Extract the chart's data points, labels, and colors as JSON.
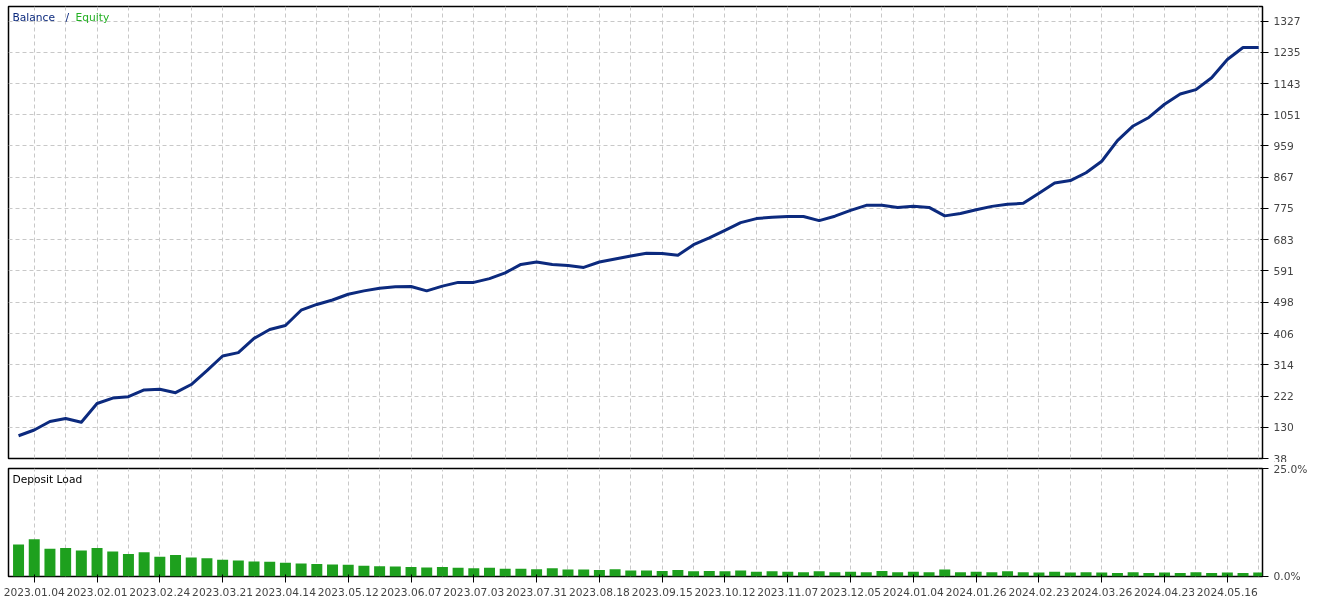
{
  "chart_data": [
    {
      "type": "line",
      "legend": "top left",
      "tick_labels": "y",
      "grid": true,
      "ylim": [
        38,
        1370
      ],
      "annotations": [
        "/"
      ],
      "categories": [
        null,
        "2023.01.04",
        null,
        null,
        null,
        "2023.02.01",
        null,
        null,
        null,
        "2023.02.24",
        null,
        null,
        null,
        "2023.03.21",
        null,
        null,
        null,
        "2023.04.14",
        null,
        null,
        null,
        "2023.05.12",
        null,
        null,
        null,
        "2023.06.07",
        null,
        null,
        null,
        "2023.07.03",
        null,
        null,
        null,
        "2023.07.31",
        null,
        null,
        null,
        "2023.08.18",
        null,
        null,
        null,
        "2023.09.15",
        null,
        null,
        null,
        "2023.10.12",
        null,
        null,
        null,
        "2023.11.07",
        null,
        null,
        null,
        "2023.12.05",
        null,
        null,
        null,
        "2024.01.04",
        null,
        null,
        null,
        "2024.01.26",
        null,
        null,
        null,
        "2024.02.23",
        null,
        null,
        null,
        "2024.03.26",
        null,
        null,
        null,
        "2024.04.23",
        null,
        null,
        null,
        "2024.05.16",
        null,
        null
      ],
      "yticks": [
        38,
        130,
        222,
        314,
        406,
        498,
        591,
        683,
        775,
        867,
        959,
        1051,
        1143,
        1235,
        1327
      ],
      "series": [
        {
          "name": "Balance",
          "color": "#0c2a7e",
          "values": [
            105,
            122,
            147,
            156,
            145,
            200,
            216,
            220,
            240,
            242,
            232,
            256,
            297,
            340,
            350,
            392,
            418,
            430,
            475,
            492,
            505,
            522,
            532,
            540,
            544,
            545,
            532,
            546,
            557,
            557,
            568,
            585,
            610,
            617,
            610,
            607,
            601,
            617,
            626,
            635,
            643,
            642,
            637,
            668,
            688,
            710,
            733,
            745,
            749,
            751,
            751,
            739,
            752,
            769,
            784,
            784,
            778,
            781,
            778,
            753,
            760,
            771,
            781,
            787,
            790,
            820,
            850,
            857,
            880,
            914,
            975,
            1018,
            1043,
            1082,
            1112,
            1125,
            1160,
            1214,
            1249,
            1249
          ]
        },
        {
          "name": "Equity",
          "color": "#22b022",
          "values": [
            null,
            null,
            null,
            null,
            null,
            null,
            null,
            null,
            null,
            null,
            null,
            null,
            null,
            null,
            null,
            null,
            null,
            null,
            null,
            null,
            null,
            null,
            null,
            null,
            null,
            null,
            null,
            null,
            null,
            null,
            null,
            null,
            null,
            null,
            null,
            null,
            null,
            null,
            null,
            null,
            null,
            null,
            null,
            null,
            null,
            null,
            null,
            null,
            null,
            null,
            null,
            null,
            null,
            null,
            null,
            null,
            null,
            null,
            null,
            null,
            null,
            null,
            null,
            null,
            null,
            null,
            null,
            null,
            null,
            null,
            null,
            null,
            null,
            null,
            null,
            null,
            null,
            null,
            null,
            null
          ]
        }
      ]
    },
    {
      "type": "bar",
      "title": "Deposit Load",
      "grid": "x",
      "ylim": [
        0,
        25
      ],
      "yticks": [
        {
          "value": 0,
          "label": "0.0%"
        },
        {
          "value": 25,
          "label": "25.0%"
        }
      ],
      "categories": [
        null,
        "2023.01.04",
        null,
        null,
        null,
        "2023.02.01",
        null,
        null,
        null,
        "2023.02.24",
        null,
        null,
        null,
        "2023.03.21",
        null,
        null,
        null,
        "2023.04.14",
        null,
        null,
        null,
        "2023.05.12",
        null,
        null,
        null,
        "2023.06.07",
        null,
        null,
        null,
        "2023.07.03",
        null,
        null,
        null,
        "2023.07.31",
        null,
        null,
        null,
        "2023.08.18",
        null,
        null,
        null,
        "2023.09.15",
        null,
        null,
        null,
        "2023.10.12",
        null,
        null,
        null,
        "2023.11.07",
        null,
        null,
        null,
        "2023.12.05",
        null,
        null,
        null,
        "2024.01.04",
        null,
        null,
        null,
        "2024.01.26",
        null,
        null,
        null,
        "2024.02.23",
        null,
        null,
        null,
        "2024.03.26",
        null,
        null,
        null,
        "2024.04.23",
        null,
        null,
        null,
        "2024.05.16",
        null,
        null
      ],
      "color": "#1ea01e",
      "values": [
        7.4,
        8.6,
        6.4,
        6.6,
        6.0,
        6.6,
        5.8,
        5.2,
        5.6,
        4.6,
        5.0,
        4.4,
        4.2,
        3.9,
        3.7,
        3.5,
        3.4,
        3.2,
        3.0,
        2.9,
        2.8,
        2.7,
        2.5,
        2.4,
        2.3,
        2.2,
        2.1,
        2.2,
        2.0,
        1.9,
        2.0,
        1.8,
        1.8,
        1.7,
        1.9,
        1.6,
        1.6,
        1.5,
        1.7,
        1.4,
        1.4,
        1.3,
        1.5,
        1.2,
        1.3,
        1.2,
        1.4,
        1.1,
        1.2,
        1.1,
        1.0,
        1.2,
        1.0,
        1.1,
        1.0,
        1.3,
        1.0,
        1.1,
        1.0,
        1.6,
        1.0,
        1.1,
        1.0,
        1.2,
        1.0,
        0.9,
        1.1,
        0.9,
        1.0,
        0.9,
        0.8,
        1.0,
        0.8,
        0.9,
        0.8,
        1.0,
        0.8,
        0.9,
        0.8,
        0.9
      ]
    }
  ]
}
